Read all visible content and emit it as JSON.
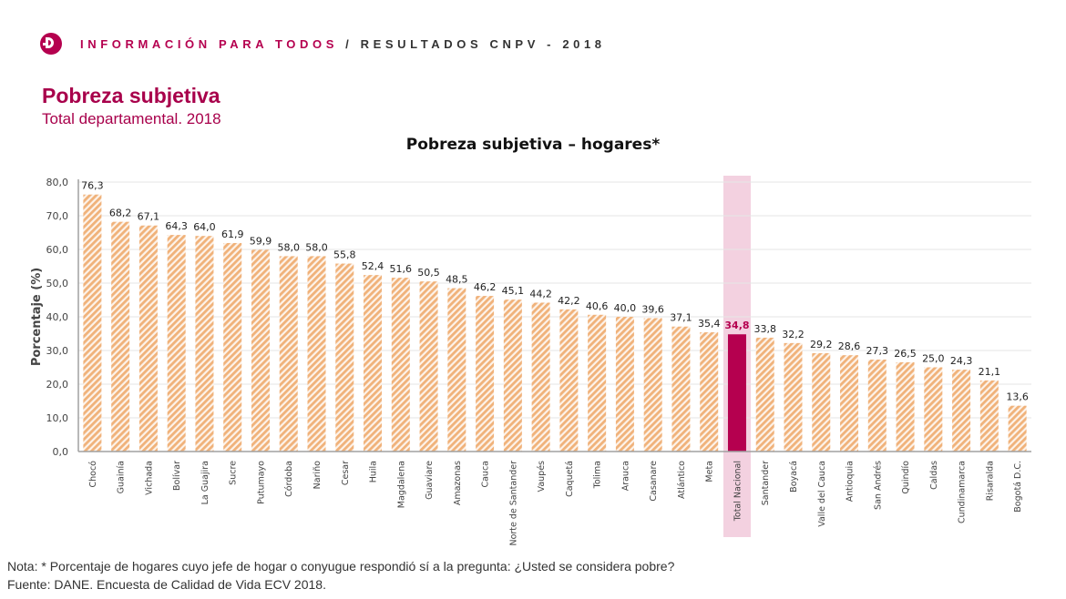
{
  "header": {
    "logo_icon": "dane-logo-icon",
    "section_a": "INFORMACIÓN PARA TODOS",
    "separator": " / ",
    "section_b": "RESULTADOS CNPV - 2018",
    "accent_color": "#b5004f"
  },
  "page": {
    "title": "Pobreza subjetiva",
    "subtitle": "Total departamental. 2018"
  },
  "chart_data": {
    "type": "bar",
    "title": "Pobreza subjetiva – hogares*",
    "xlabel": "",
    "ylabel": "Porcentaje (%)",
    "ylim": [
      0,
      80
    ],
    "yticks": [
      "0,0",
      "10,0",
      "20,0",
      "30,0",
      "40,0",
      "50,0",
      "60,0",
      "70,0",
      "80,0"
    ],
    "grid": true,
    "legend": "none",
    "highlight_category": "Total Nacional",
    "colors": {
      "bar": "#f0b27a",
      "highlight_bar": "#b5004f",
      "highlight_band": "#f3d1e0",
      "highlight_label": "#b5004f"
    },
    "categories": [
      "Chocó",
      "Guainía",
      "Vichada",
      "Bolívar",
      "La Guajira",
      "Sucre",
      "Putumayo",
      "Córdoba",
      "Nariño",
      "Cesar",
      "Huila",
      "Magdalena",
      "Guaviare",
      "Amazonas",
      "Cauca",
      "Norte de Santander",
      "Vaupés",
      "Caquetá",
      "Tolima",
      "Arauca",
      "Casanare",
      "Atlántico",
      "Meta",
      "Total Nacional",
      "Santander",
      "Boyacá",
      "Valle del Cauca",
      "Antioquia",
      "San Andrés",
      "Quindío",
      "Caldas",
      "Cundinamarca",
      "Risaralda",
      "Bogotá D.C."
    ],
    "values": [
      76.3,
      68.2,
      67.1,
      64.3,
      64.0,
      61.9,
      59.9,
      58.0,
      58.0,
      55.8,
      52.4,
      51.6,
      50.5,
      48.5,
      46.2,
      45.1,
      44.2,
      42.2,
      40.6,
      40.0,
      39.6,
      37.1,
      35.4,
      34.8,
      33.8,
      32.2,
      29.2,
      28.6,
      27.3,
      26.5,
      25.0,
      24.3,
      21.1,
      13.6
    ],
    "value_labels": [
      "76,3",
      "68,2",
      "67,1",
      "64,3",
      "64,0",
      "61,9",
      "59,9",
      "58,0",
      "58,0",
      "55,8",
      "52,4",
      "51,6",
      "50,5",
      "48,5",
      "46,2",
      "45,1",
      "44,2",
      "42,2",
      "40,6",
      "40,0",
      "39,6",
      "37,1",
      "35,4",
      "34,8",
      "33,8",
      "32,2",
      "29,2",
      "28,6",
      "27,3",
      "26,5",
      "25,0",
      "24,3",
      "21,1",
      "13,6"
    ]
  },
  "footnotes": {
    "note": "Nota: * Porcentaje de hogares cuyo jefe de hogar o conyugue respondió sí a la pregunta: ¿Usted se considera pobre?",
    "source": "Fuente: DANE. Encuesta de Calidad de Vida ECV 2018."
  }
}
